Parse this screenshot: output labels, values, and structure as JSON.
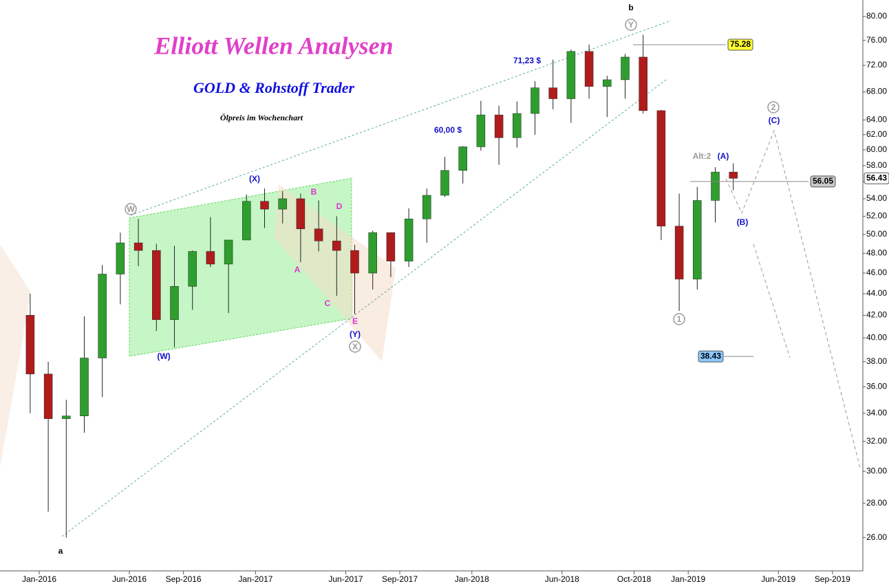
{
  "chart_data": {
    "type": "candlestick",
    "title": "Elliott Wellen Analysen",
    "subtitle": "GOLD & Rohstoff Trader",
    "caption": "Ölpreis im Wochenchart",
    "log_scale": true,
    "up_color": "#2e9e2e",
    "down_color": "#b01c1c",
    "x": [
      "2015-12",
      "2016-01",
      "2016-02",
      "2016-03",
      "2016-04",
      "2016-05",
      "2016-06",
      "2016-07",
      "2016-08",
      "2016-09",
      "2016-10",
      "2016-11",
      "2016-12",
      "2017-01",
      "2017-02",
      "2017-03",
      "2017-04",
      "2017-05",
      "2017-06",
      "2017-07",
      "2017-08",
      "2017-09",
      "2017-10",
      "2017-11",
      "2017-12",
      "2018-01",
      "2018-02",
      "2018-03",
      "2018-04",
      "2018-05",
      "2018-06",
      "2018-07",
      "2018-08",
      "2018-09",
      "2018-10",
      "2018-11",
      "2018-12",
      "2019-01",
      "2019-02",
      "2019-03"
    ],
    "open": [
      42,
      37,
      33.6,
      33.8,
      38.3,
      45.9,
      49.1,
      48.3,
      41.6,
      44.7,
      48.2,
      46.9,
      49.4,
      53.7,
      52.8,
      54,
      50.6,
      49.3,
      48.3,
      46,
      50.2,
      47.2,
      51.7,
      54.4,
      57.4,
      60.4,
      64.7,
      61.6,
      64.9,
      68.6,
      67,
      74.2,
      68.8,
      69.8,
      73.3,
      65.3,
      50.9,
      45.4,
      53.8,
      57.2
    ],
    "high": [
      44,
      38,
      35,
      41.9,
      46.8,
      50.2,
      51.7,
      49,
      48.8,
      48.3,
      51.9,
      49.2,
      54.5,
      55.2,
      54.9,
      54.6,
      53.8,
      52,
      48.9,
      50.4,
      50.2,
      52.9,
      55.2,
      59.1,
      60.5,
      66.7,
      66,
      66.6,
      69.6,
      72.9,
      74.5,
      75.3,
      70.4,
      73.8,
      76.9,
      65.4,
      54.6,
      55.4,
      57.8,
      58.3
    ],
    "low": [
      34,
      27.5,
      26,
      32.6,
      35.2,
      43,
      46.7,
      40.6,
      39.2,
      42.5,
      46.6,
      42.2,
      49.5,
      50.7,
      51.2,
      47.1,
      48.2,
      43.8,
      42.1,
      44.4,
      45.6,
      46.6,
      49.1,
      54.2,
      55.8,
      59.9,
      58.1,
      60.3,
      62,
      65.5,
      63.6,
      67,
      64.4,
      67,
      64.9,
      49.4,
      42.4,
      44.4,
      51.3,
      55
    ],
    "close": [
      37,
      33.6,
      33.8,
      38.3,
      45.9,
      49.1,
      48.3,
      41.6,
      44.7,
      48.2,
      46.9,
      49.4,
      53.7,
      52.8,
      54,
      50.6,
      49.3,
      48.3,
      46,
      50.2,
      47.2,
      51.7,
      54.4,
      57.4,
      60.4,
      64.7,
      61.6,
      64.9,
      68.6,
      67,
      74.2,
      68.8,
      69.8,
      73.3,
      65.3,
      50.9,
      45.4,
      53.8,
      57.2,
      56.43
    ],
    "ylim": [
      24.2,
      82.9
    ],
    "yticks": [
      {
        "value": 26,
        "label": "26.00"
      },
      {
        "value": 28,
        "label": "28.00"
      },
      {
        "value": 30,
        "label": "30.00"
      },
      {
        "value": 32,
        "label": "32.00"
      },
      {
        "value": 34,
        "label": "34.00"
      },
      {
        "value": 36,
        "label": "36.00"
      },
      {
        "value": 38,
        "label": "38.00"
      },
      {
        "value": 40,
        "label": "40.00"
      },
      {
        "value": 42,
        "label": "42.00"
      },
      {
        "value": 44,
        "label": "44.00"
      },
      {
        "value": 46,
        "label": "46.00"
      },
      {
        "value": 48,
        "label": "48.00"
      },
      {
        "value": 50,
        "label": "50.00"
      },
      {
        "value": 52,
        "label": "52.00"
      },
      {
        "value": 54,
        "label": "54.00"
      },
      {
        "value": 56,
        "label": "56.00"
      },
      {
        "value": 58,
        "label": "58.00"
      },
      {
        "value": 60,
        "label": "60.00"
      },
      {
        "value": 62,
        "label": "62.00"
      },
      {
        "value": 64,
        "label": "64.00"
      },
      {
        "value": 68,
        "label": "68.00"
      },
      {
        "value": 72,
        "label": "72.00"
      },
      {
        "value": 76,
        "label": "76.00"
      },
      {
        "value": 80,
        "label": "80.00"
      }
    ],
    "xticks": [
      {
        "value": "2016-01",
        "label": "Jan-2016"
      },
      {
        "value": "2016-06",
        "label": "Jun-2016"
      },
      {
        "value": "2016-09",
        "label": "Sep-2016"
      },
      {
        "value": "2017-01",
        "label": "Jan-2017"
      },
      {
        "value": "2017-06",
        "label": "Jun-2017"
      },
      {
        "value": "2017-09",
        "label": "Sep-2017"
      },
      {
        "value": "2018-01",
        "label": "Jan-2018"
      },
      {
        "value": "2018-06",
        "label": "Jun-2018"
      },
      {
        "value": "2018-10",
        "label": "Oct-2018"
      },
      {
        "value": "2019-01",
        "label": "Jan-2019"
      },
      {
        "value": "2019-06",
        "label": "Jun-2019"
      },
      {
        "value": "2019-09",
        "label": "Sep-2019"
      }
    ],
    "levels": [
      75.28,
      56.05,
      38.43,
      56.43
    ],
    "annotations": [
      "b",
      "a",
      "(X)",
      "(W)",
      "(Y)",
      "A",
      "B",
      "C",
      "D",
      "E",
      "(A)",
      "(B)",
      "(C)",
      "Alt:2",
      "71,23 $",
      "60,00 $"
    ],
    "wave_circles": [
      "W",
      "X",
      "Y",
      "1",
      "2"
    ]
  }
}
